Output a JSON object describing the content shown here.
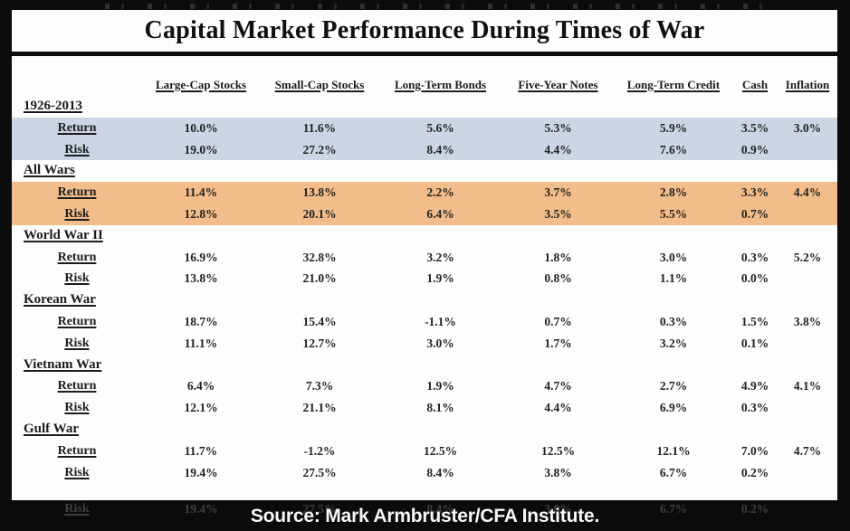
{
  "title": "Capital Market Performance During Times of War",
  "labels": {
    "return": "Return",
    "risk": "Risk"
  },
  "chart_data": {
    "type": "table",
    "title": "Capital Market Performance During Times of War",
    "columns": [
      "Large-Cap Stocks",
      "Small-Cap Stocks",
      "Long-Term Bonds",
      "Five-Year Notes",
      "Long-Term Credit",
      "Cash",
      "Inflation"
    ],
    "row_kinds": [
      "Return",
      "Risk"
    ],
    "sections": [
      {
        "name": "1926-2013",
        "highlight": "blue",
        "return": [
          "10.0%",
          "11.6%",
          "5.6%",
          "5.3%",
          "5.9%",
          "3.5%",
          "3.0%"
        ],
        "risk": [
          "19.0%",
          "27.2%",
          "8.4%",
          "4.4%",
          "7.6%",
          "0.9%",
          ""
        ]
      },
      {
        "name": "All Wars",
        "highlight": "orange",
        "return": [
          "11.4%",
          "13.8%",
          "2.2%",
          "3.7%",
          "2.8%",
          "3.3%",
          "4.4%"
        ],
        "risk": [
          "12.8%",
          "20.1%",
          "6.4%",
          "3.5%",
          "5.5%",
          "0.7%",
          ""
        ]
      },
      {
        "name": "World War II",
        "highlight": null,
        "return": [
          "16.9%",
          "32.8%",
          "3.2%",
          "1.8%",
          "3.0%",
          "0.3%",
          "5.2%"
        ],
        "risk": [
          "13.8%",
          "21.0%",
          "1.9%",
          "0.8%",
          "1.1%",
          "0.0%",
          ""
        ]
      },
      {
        "name": "Korean War",
        "highlight": null,
        "return": [
          "18.7%",
          "15.4%",
          "-1.1%",
          "0.7%",
          "0.3%",
          "1.5%",
          "3.8%"
        ],
        "risk": [
          "11.1%",
          "12.7%",
          "3.0%",
          "1.7%",
          "3.2%",
          "0.1%",
          ""
        ]
      },
      {
        "name": "Vietnam War",
        "highlight": null,
        "return": [
          "6.4%",
          "7.3%",
          "1.9%",
          "4.7%",
          "2.7%",
          "4.9%",
          "4.1%"
        ],
        "risk": [
          "12.1%",
          "21.1%",
          "8.1%",
          "4.4%",
          "6.9%",
          "0.3%",
          ""
        ]
      },
      {
        "name": "Gulf War",
        "highlight": null,
        "return": [
          "11.7%",
          "-1.2%",
          "12.5%",
          "12.5%",
          "12.1%",
          "7.0%",
          "4.7%"
        ],
        "risk": [
          "19.4%",
          "27.5%",
          "8.4%",
          "3.8%",
          "6.7%",
          "0.2%",
          ""
        ]
      }
    ],
    "source": "Source: Mark Armbruster/CFA Institute."
  },
  "ghost_row": {
    "label": "Risk",
    "values": [
      "19.4%",
      "27.5%",
      "8.4%",
      "3.8%",
      "6.7%",
      "0.2%",
      ""
    ]
  },
  "footer": {
    "source": "Source: Mark Armbruster/CFA Institute."
  },
  "colors": {
    "frame": "#0c0c0c",
    "paper": "#fdfdfd",
    "highlight_blue": "#cbd5e3",
    "highlight_orange": "#f2bd8a",
    "caption_text": "#f7f7f7"
  }
}
